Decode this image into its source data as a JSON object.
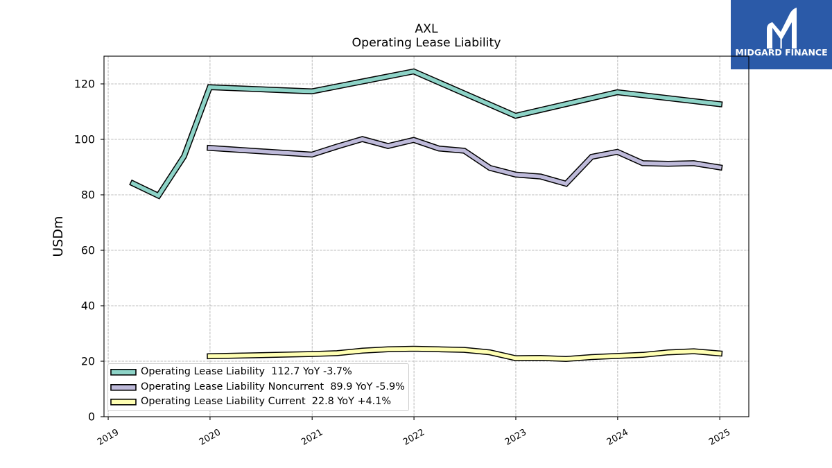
{
  "logo": {
    "name": "MIDGARD FINANCE",
    "icon": "midgard-monogram-icon",
    "background": "#2b5aa8",
    "foreground": "#ffffff"
  },
  "chart_data": {
    "type": "line",
    "title": "AXL",
    "subtitle": "Operating Lease Liability",
    "xlabel": "",
    "ylabel": "USDm",
    "xlim": [
      "2018-12-17",
      "2025-04-15"
    ],
    "ylim": [
      0,
      130
    ],
    "x_ticks": [
      "2019",
      "2020",
      "2021",
      "2022",
      "2023",
      "2024",
      "2025"
    ],
    "y_ticks": [
      0,
      20,
      40,
      60,
      80,
      100,
      120
    ],
    "grid": true,
    "legend": "lower-left",
    "series": [
      {
        "name": "Operating Lease Liability",
        "latest": "112.7",
        "change": "YoY -3.7%",
        "color": "#8dd3c7",
        "x": [
          "2019-03-31",
          "2019-06-30",
          "2019-09-30",
          "2019-12-31",
          "2020-12-31",
          "2021-12-31",
          "2022-12-31",
          "2023-12-31",
          "2024-12-31"
        ],
        "y": [
          84.1,
          79.7,
          93.9,
          118.8,
          117.3,
          124.5,
          108.5,
          117.0,
          112.7
        ]
      },
      {
        "name": "Operating Lease Liability Noncurrent",
        "latest": "89.9",
        "change": "YoY -5.9%",
        "color": "#bebada",
        "x": [
          "2019-12-31",
          "2020-12-31",
          "2021-03-31",
          "2021-06-30",
          "2021-09-30",
          "2021-12-31",
          "2022-03-31",
          "2022-06-30",
          "2022-09-30",
          "2022-12-31",
          "2023-03-31",
          "2023-06-30",
          "2023-09-30",
          "2023-12-31",
          "2024-03-31",
          "2024-06-30",
          "2024-09-30",
          "2024-12-31"
        ],
        "y": [
          96.9,
          94.5,
          97.4,
          100.1,
          97.6,
          99.8,
          96.7,
          95.9,
          89.7,
          87.3,
          86.6,
          84.0,
          93.7,
          95.5,
          91.4,
          91.2,
          91.4,
          89.9
        ]
      },
      {
        "name": "Operating Lease Liability Current",
        "latest": "22.8",
        "change": "YoY +4.1%",
        "color": "#ffffb3",
        "x": [
          "2019-12-31",
          "2020-12-31",
          "2021-03-31",
          "2021-06-30",
          "2021-09-30",
          "2021-12-31",
          "2022-03-31",
          "2022-06-30",
          "2022-09-30",
          "2022-12-31",
          "2023-03-31",
          "2023-06-30",
          "2023-09-30",
          "2023-12-31",
          "2024-03-31",
          "2024-06-30",
          "2024-09-30",
          "2024-12-31"
        ],
        "y": [
          21.8,
          22.6,
          22.9,
          23.8,
          24.3,
          24.5,
          24.3,
          24.1,
          23.2,
          21.1,
          21.2,
          20.8,
          21.5,
          21.9,
          22.3,
          23.2,
          23.6,
          22.8
        ]
      }
    ]
  }
}
